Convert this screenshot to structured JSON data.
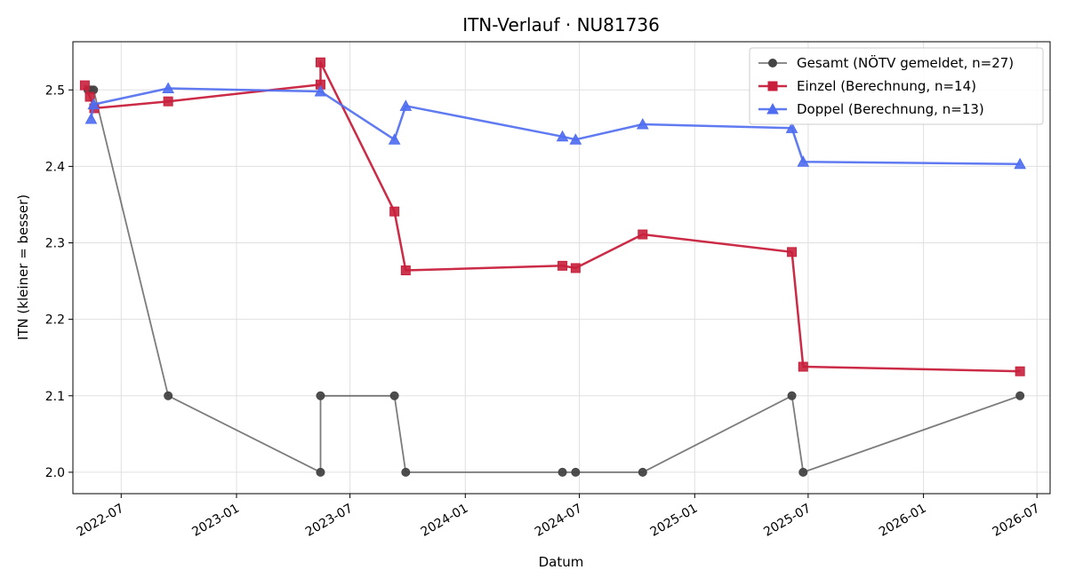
{
  "chart_data": {
    "type": "line",
    "title": "ITN-Verlauf · NU81736",
    "xlabel": "Datum",
    "ylabel": "ITN  (kleiner = besser)",
    "x_type": "date",
    "xlim": [
      "2022-04-15",
      "2026-07-22"
    ],
    "ylim": [
      1.972,
      2.563
    ],
    "x_ticks": [
      "2022-07-01",
      "2023-01-01",
      "2023-07-01",
      "2024-01-01",
      "2024-07-01",
      "2025-01-01",
      "2025-07-01",
      "2026-01-01",
      "2026-07-01"
    ],
    "x_tick_labels": [
      "2022-07",
      "2023-01",
      "2023-07",
      "2024-01",
      "2024-07",
      "2025-01",
      "2025-07",
      "2026-01",
      "2026-07"
    ],
    "y_ticks": [
      2.0,
      2.1,
      2.2,
      2.3,
      2.4,
      2.5
    ],
    "y_tick_labels": [
      "2.0",
      "2.1",
      "2.2",
      "2.3",
      "2.4",
      "2.5"
    ],
    "grid": true,
    "legend_position": "top-right",
    "series": [
      {
        "name": "Gesamt (NÖTV gemeldet, n=27)",
        "color": "#444444",
        "marker": "circle",
        "points": [
          {
            "x": "2022-05-09",
            "y": 2.5
          },
          {
            "x": "2022-05-14",
            "y": 2.5
          },
          {
            "x": "2022-05-18",
            "y": 2.5
          },
          {
            "x": "2022-09-14",
            "y": 2.1
          },
          {
            "x": "2023-05-15",
            "y": 2.0
          },
          {
            "x": "2023-05-15",
            "y": 2.1
          },
          {
            "x": "2023-09-10",
            "y": 2.1
          },
          {
            "x": "2023-09-28",
            "y": 2.0
          },
          {
            "x": "2024-06-04",
            "y": 2.0
          },
          {
            "x": "2024-06-25",
            "y": 2.0
          },
          {
            "x": "2024-10-10",
            "y": 2.0
          },
          {
            "x": "2025-06-05",
            "y": 2.1
          },
          {
            "x": "2025-06-23",
            "y": 2.0
          },
          {
            "x": "2026-06-04",
            "y": 2.1
          }
        ]
      },
      {
        "name": "Einzel (Berechnung, n=14)",
        "color": "#c8203c",
        "marker": "square",
        "points": [
          {
            "x": "2022-05-04",
            "y": 2.506
          },
          {
            "x": "2022-05-12",
            "y": 2.491
          },
          {
            "x": "2022-05-19",
            "y": 2.476
          },
          {
            "x": "2022-09-14",
            "y": 2.485
          },
          {
            "x": "2023-05-15",
            "y": 2.507
          },
          {
            "x": "2023-05-15",
            "y": 2.536
          },
          {
            "x": "2023-09-10",
            "y": 2.341
          },
          {
            "x": "2023-09-28",
            "y": 2.264
          },
          {
            "x": "2024-06-04",
            "y": 2.27
          },
          {
            "x": "2024-06-25",
            "y": 2.267
          },
          {
            "x": "2024-10-10",
            "y": 2.311
          },
          {
            "x": "2025-06-05",
            "y": 2.288
          },
          {
            "x": "2025-06-23",
            "y": 2.138
          },
          {
            "x": "2026-06-04",
            "y": 2.132
          }
        ]
      },
      {
        "name": "Doppel (Berechnung, n=13)",
        "color": "#4f6df0",
        "marker": "triangle",
        "points": [
          {
            "x": "2022-05-14",
            "y": 2.462
          },
          {
            "x": "2022-05-18",
            "y": 2.481
          },
          {
            "x": "2022-09-14",
            "y": 2.502
          },
          {
            "x": "2023-05-15",
            "y": 2.498
          },
          {
            "x": "2023-09-10",
            "y": 2.435
          },
          {
            "x": "2023-09-28",
            "y": 2.479
          },
          {
            "x": "2024-06-04",
            "y": 2.439
          },
          {
            "x": "2024-06-25",
            "y": 2.435
          },
          {
            "x": "2024-10-10",
            "y": 2.455
          },
          {
            "x": "2025-06-05",
            "y": 2.45
          },
          {
            "x": "2025-06-23",
            "y": 2.406
          },
          {
            "x": "2026-06-04",
            "y": 2.403
          }
        ]
      }
    ]
  }
}
